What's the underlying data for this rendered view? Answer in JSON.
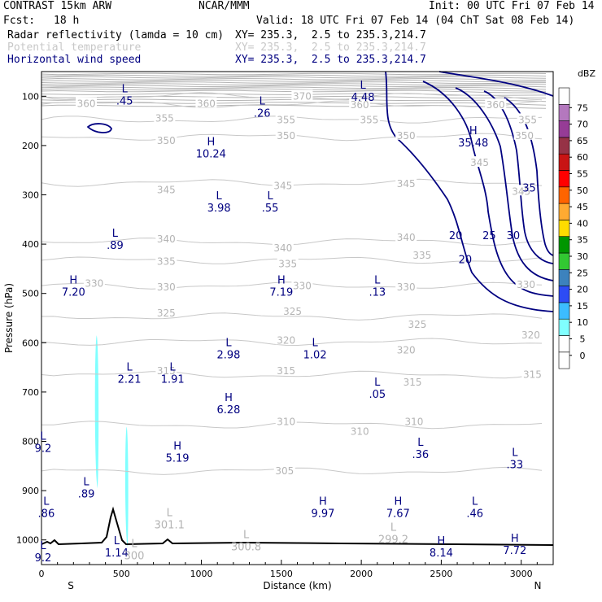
{
  "header": {
    "model": "CONTRAST 15km ARW",
    "center": "NCAR/MMM",
    "init": "Init: 00 UTC Fri 07 Feb 14",
    "fcst_label": "Fcst:",
    "fcst_value": "18 h",
    "valid": "Valid: 18 UTC Fri 07 Feb 14 (04 ChT Sat 08 Feb 14)",
    "fields": [
      {
        "name": "Radar reflectivity (lamda = 10 cm)",
        "xy": "XY= 235.3,  2.5 to 235.3,214.7"
      },
      {
        "name": "Potential temperature",
        "xy": "XY= 235.3,  2.5 to 235.3,214.7"
      },
      {
        "name": "Horizontal wind speed",
        "xy": "XY= 235.3,  2.5 to 235.3,214.7"
      }
    ]
  },
  "chart_data": {
    "type": "line",
    "xlabel": "Distance (km)",
    "ylabel": "Pressure (hPa)",
    "xlim": [
      0,
      3200
    ],
    "ylim": [
      1050,
      50
    ],
    "x_ticks": [
      0,
      500,
      1000,
      1500,
      2000,
      2500,
      3000
    ],
    "x_tick_labels": [
      "0",
      "500",
      "1000",
      "1500",
      "2000",
      "2500",
      "3000"
    ],
    "x_end_labels": {
      "left": "S",
      "right": "N"
    },
    "y_ticks": [
      100,
      200,
      300,
      400,
      500,
      600,
      700,
      800,
      900,
      1000
    ],
    "y_tick_labels": [
      "100",
      "200",
      "300",
      "400",
      "500",
      "600",
      "700",
      "800",
      "900",
      "1000"
    ],
    "theta_labels": [
      {
        "x": 280,
        "p": 115,
        "t": "360"
      },
      {
        "x": 1030,
        "p": 115,
        "t": "360"
      },
      {
        "x": 1630,
        "p": 100,
        "t": "370"
      },
      {
        "x": 1990,
        "p": 118,
        "t": "360"
      },
      {
        "x": 2840,
        "p": 118,
        "t": "360"
      },
      {
        "x": 770,
        "p": 145,
        "t": "355"
      },
      {
        "x": 1530,
        "p": 148,
        "t": "355"
      },
      {
        "x": 2050,
        "p": 148,
        "t": "355"
      },
      {
        "x": 3040,
        "p": 148,
        "t": "355"
      },
      {
        "x": 780,
        "p": 190,
        "t": "350"
      },
      {
        "x": 1530,
        "p": 180,
        "t": "350"
      },
      {
        "x": 2280,
        "p": 180,
        "t": "350"
      },
      {
        "x": 3020,
        "p": 180,
        "t": "350"
      },
      {
        "x": 2740,
        "p": 235,
        "t": "345"
      },
      {
        "x": 780,
        "p": 290,
        "t": "345"
      },
      {
        "x": 1510,
        "p": 282,
        "t": "345"
      },
      {
        "x": 2280,
        "p": 278,
        "t": "345"
      },
      {
        "x": 3000,
        "p": 293,
        "t": "345"
      },
      {
        "x": 780,
        "p": 390,
        "t": "340"
      },
      {
        "x": 1510,
        "p": 408,
        "t": "340"
      },
      {
        "x": 2280,
        "p": 387,
        "t": "340"
      },
      {
        "x": 780,
        "p": 435,
        "t": "335"
      },
      {
        "x": 1540,
        "p": 440,
        "t": "335"
      },
      {
        "x": 2380,
        "p": 423,
        "t": "335"
      },
      {
        "x": 3030,
        "p": 482,
        "t": "330"
      },
      {
        "x": 330,
        "p": 480,
        "t": "330"
      },
      {
        "x": 780,
        "p": 487,
        "t": "330"
      },
      {
        "x": 1630,
        "p": 485,
        "t": "330"
      },
      {
        "x": 2280,
        "p": 487,
        "t": "330"
      },
      {
        "x": 780,
        "p": 540,
        "t": "325"
      },
      {
        "x": 1570,
        "p": 537,
        "t": "325"
      },
      {
        "x": 2350,
        "p": 563,
        "t": "325"
      },
      {
        "x": 1530,
        "p": 595,
        "t": "320"
      },
      {
        "x": 2280,
        "p": 615,
        "t": "320"
      },
      {
        "x": 3060,
        "p": 585,
        "t": "320"
      },
      {
        "x": 780,
        "p": 657,
        "t": "315"
      },
      {
        "x": 1530,
        "p": 657,
        "t": "315"
      },
      {
        "x": 2320,
        "p": 680,
        "t": "315"
      },
      {
        "x": 3070,
        "p": 665,
        "t": "315"
      },
      {
        "x": 1530,
        "p": 760,
        "t": "310"
      },
      {
        "x": 1990,
        "p": 780,
        "t": "310"
      },
      {
        "x": 2330,
        "p": 760,
        "t": "310"
      },
      {
        "x": 1520,
        "p": 860,
        "t": "305"
      }
    ],
    "extrema": [
      {
        "type": "L",
        "value": ".45",
        "x": 520,
        "p": 95
      },
      {
        "type": "L",
        "value": ".26",
        "x": 1380,
        "p": 120
      },
      {
        "type": "L",
        "value": "4.48",
        "x": 2010,
        "p": 88
      },
      {
        "type": "H",
        "value": "35.48",
        "x": 2700,
        "p": 180
      },
      {
        "type": "H",
        "value": "10.24",
        "x": 1060,
        "p": 203
      },
      {
        "type": "L",
        "value": "3.98",
        "x": 1110,
        "p": 312
      },
      {
        "type": "L",
        "value": ".55",
        "x": 1430,
        "p": 312
      },
      {
        "type": "L",
        "value": ".89",
        "x": 460,
        "p": 388
      },
      {
        "type": "H",
        "value": "7.20",
        "x": 200,
        "p": 483
      },
      {
        "type": "H",
        "value": "7.19",
        "x": 1500,
        "p": 483
      },
      {
        "type": "L",
        "value": ".13",
        "x": 2100,
        "p": 483
      },
      {
        "type": "L",
        "value": "2.98",
        "x": 1170,
        "p": 610
      },
      {
        "type": "L",
        "value": "1.02",
        "x": 1710,
        "p": 610
      },
      {
        "type": "L",
        "value": "2.21",
        "x": 550,
        "p": 660
      },
      {
        "type": "L",
        "value": "1.91",
        "x": 820,
        "p": 660
      },
      {
        "type": "L",
        "value": ".05",
        "x": 2100,
        "p": 690
      },
      {
        "type": "H",
        "value": "6.28",
        "x": 1170,
        "p": 722
      },
      {
        "type": "L",
        "value": ".36",
        "x": 2370,
        "p": 812
      },
      {
        "type": "L",
        "value": "9.2",
        "x": 10,
        "p": 800
      },
      {
        "type": "H",
        "value": "5.19",
        "x": 850,
        "p": 820
      },
      {
        "type": "L",
        "value": ".33",
        "x": 2960,
        "p": 833
      },
      {
        "type": "L",
        "value": ".89",
        "x": 280,
        "p": 892
      },
      {
        "type": "L",
        "value": ".86",
        "x": 30,
        "p": 932
      },
      {
        "type": "H",
        "value": "9.97",
        "x": 1760,
        "p": 932
      },
      {
        "type": "H",
        "value": "7.67",
        "x": 2230,
        "p": 932
      },
      {
        "type": "L",
        "value": ".46",
        "x": 2710,
        "p": 932
      },
      {
        "type": "L",
        "value": "301.1",
        "x": 800,
        "p": 955
      },
      {
        "type": "L",
        "value": "300.8",
        "x": 1280,
        "p": 1000
      },
      {
        "type": "L",
        "value": "299.2",
        "x": 2200,
        "p": 985
      },
      {
        "type": "H",
        "value": "8.14",
        "x": 2500,
        "p": 1012
      },
      {
        "type": "H",
        "value": "7.72",
        "x": 2960,
        "p": 1007
      },
      {
        "type": "L",
        "value": "1.14",
        "x": 470,
        "p": 1012
      },
      {
        "type": "L",
        "value": "300",
        "x": 580,
        "p": 1018
      },
      {
        "type": "L",
        "value": "9.2",
        "x": 10,
        "p": 1022
      }
    ],
    "wind_contour_labels": [
      {
        "x": 3050,
        "p": 285,
        "t": "35"
      },
      {
        "x": 2590,
        "p": 382,
        "t": "20"
      },
      {
        "x": 2800,
        "p": 382,
        "t": "25"
      },
      {
        "x": 2950,
        "p": 382,
        "t": "30"
      },
      {
        "x": 2650,
        "p": 430,
        "t": "20"
      }
    ],
    "reflectivity_cells": [
      {
        "x_start": 330,
        "x_end": 360,
        "p_top": 585,
        "p_bottom": 895
      },
      {
        "x_start": 520,
        "x_end": 545,
        "p_top": 770,
        "p_bottom": 1015
      }
    ],
    "colorbar": {
      "units": "dBZ",
      "levels": [
        "0",
        "5",
        "10",
        "15",
        "20",
        "25",
        "30",
        "35",
        "40",
        "45",
        "50",
        "55",
        "60",
        "65",
        "70",
        "75"
      ],
      "colors": [
        "#ffffff",
        "#ffffff",
        "#80ffff",
        "#3cbcff",
        "#2d4cf5",
        "#3c82bd",
        "#32c832",
        "#009600",
        "#ffdc00",
        "#ffaa32",
        "#ff6400",
        "#ff0000",
        "#c81414",
        "#963246",
        "#963c96",
        "#b478be",
        "#ffffff"
      ]
    }
  }
}
